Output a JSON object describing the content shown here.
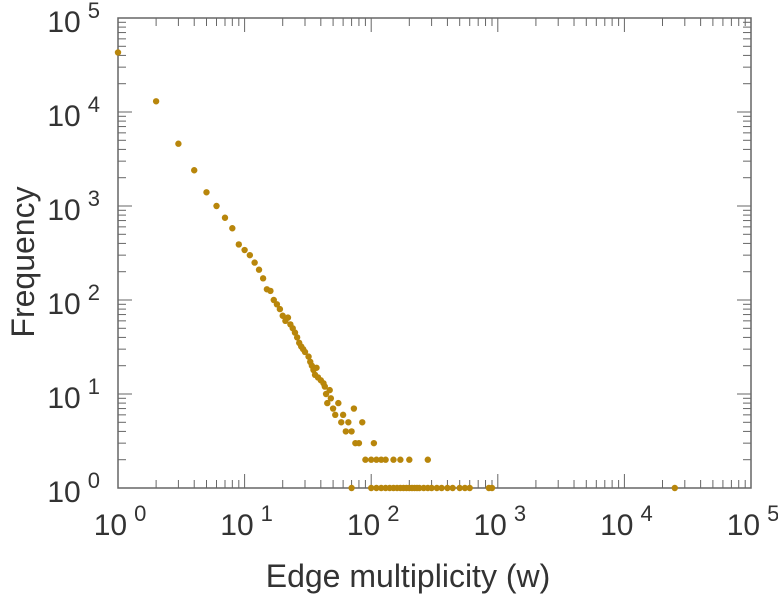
{
  "chart_data": {
    "type": "scatter",
    "xlabel": "Edge multiplicity (w)",
    "ylabel": "Frequency",
    "x_scale": "log",
    "y_scale": "log",
    "xlim": [
      1,
      100000
    ],
    "ylim": [
      1,
      100000
    ],
    "x_ticks": [
      {
        "base": "10",
        "exp": "0"
      },
      {
        "base": "10",
        "exp": "1"
      },
      {
        "base": "10",
        "exp": "2"
      },
      {
        "base": "10",
        "exp": "3"
      },
      {
        "base": "10",
        "exp": "4"
      },
      {
        "base": "10",
        "exp": "5"
      }
    ],
    "y_ticks": [
      {
        "base": "10",
        "exp": "0"
      },
      {
        "base": "10",
        "exp": "1"
      },
      {
        "base": "10",
        "exp": "2"
      },
      {
        "base": "10",
        "exp": "3"
      },
      {
        "base": "10",
        "exp": "4"
      },
      {
        "base": "10",
        "exp": "5"
      }
    ],
    "grid": false,
    "legend": "none",
    "marker_color": "#b8860b",
    "series": [
      {
        "points": [
          [
            1,
            43000
          ],
          [
            2,
            13000
          ],
          [
            3,
            4600
          ],
          [
            4,
            2400
          ],
          [
            5,
            1400
          ],
          [
            6,
            1000
          ],
          [
            7,
            750
          ],
          [
            8,
            580
          ],
          [
            9,
            390
          ],
          [
            10,
            340
          ],
          [
            11,
            300
          ],
          [
            12,
            250
          ],
          [
            13,
            210
          ],
          [
            14,
            170
          ],
          [
            15,
            130
          ],
          [
            16,
            125
          ],
          [
            17,
            100
          ],
          [
            18,
            90
          ],
          [
            19,
            80
          ],
          [
            20,
            68
          ],
          [
            21,
            60
          ],
          [
            22,
            65
          ],
          [
            23,
            55
          ],
          [
            24,
            50
          ],
          [
            25,
            45
          ],
          [
            26,
            40
          ],
          [
            27,
            35
          ],
          [
            28,
            32
          ],
          [
            29,
            30
          ],
          [
            30,
            28
          ],
          [
            32,
            25
          ],
          [
            33,
            22
          ],
          [
            34,
            20
          ],
          [
            35,
            18
          ],
          [
            36,
            16
          ],
          [
            37,
            19
          ],
          [
            38,
            15
          ],
          [
            40,
            14
          ],
          [
            42,
            13
          ],
          [
            43,
            12
          ],
          [
            44,
            10
          ],
          [
            45,
            8
          ],
          [
            47,
            11
          ],
          [
            48,
            9
          ],
          [
            50,
            7
          ],
          [
            52,
            6
          ],
          [
            55,
            8
          ],
          [
            58,
            5
          ],
          [
            60,
            6
          ],
          [
            63,
            4
          ],
          [
            66,
            5
          ],
          [
            70,
            4
          ],
          [
            73,
            7
          ],
          [
            75,
            3
          ],
          [
            80,
            3
          ],
          [
            85,
            5
          ],
          [
            90,
            2
          ],
          [
            100,
            2
          ],
          [
            105,
            3
          ],
          [
            110,
            2
          ],
          [
            120,
            2
          ],
          [
            130,
            2
          ],
          [
            150,
            2
          ],
          [
            170,
            2
          ],
          [
            200,
            2
          ],
          [
            280,
            2
          ],
          [
            70,
            1
          ],
          [
            100,
            1
          ],
          [
            110,
            1
          ],
          [
            120,
            1
          ],
          [
            130,
            1
          ],
          [
            140,
            1
          ],
          [
            150,
            1
          ],
          [
            160,
            1
          ],
          [
            170,
            1
          ],
          [
            180,
            1
          ],
          [
            190,
            1
          ],
          [
            200,
            1
          ],
          [
            210,
            1
          ],
          [
            220,
            1
          ],
          [
            230,
            1
          ],
          [
            240,
            1
          ],
          [
            260,
            1
          ],
          [
            280,
            1
          ],
          [
            300,
            1
          ],
          [
            330,
            1
          ],
          [
            360,
            1
          ],
          [
            400,
            1
          ],
          [
            440,
            1
          ],
          [
            500,
            1
          ],
          [
            550,
            1
          ],
          [
            600,
            1
          ],
          [
            850,
            1
          ],
          [
            900,
            1
          ],
          [
            25000,
            1
          ]
        ]
      }
    ]
  }
}
